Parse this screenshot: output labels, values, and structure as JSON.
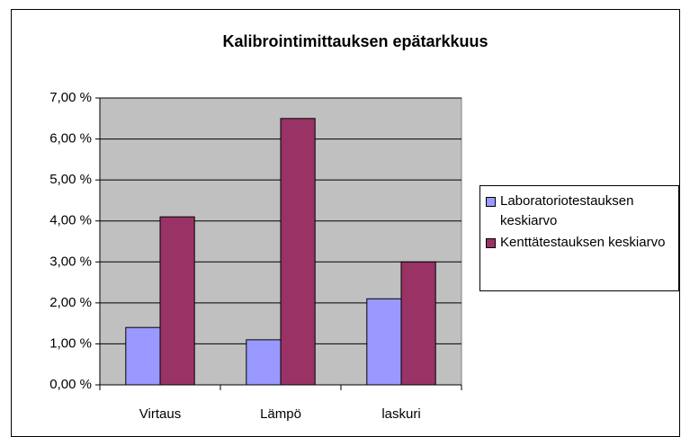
{
  "chart_data": {
    "type": "bar",
    "title": "Kalibrointimittauksen epätarkkuus",
    "categories": [
      "Virtaus",
      "Lämpö",
      "laskuri"
    ],
    "series": [
      {
        "name": "Laboratoriotestauksen keskiarvo",
        "color": "#9999ff",
        "values": [
          1.4,
          1.1,
          2.1
        ]
      },
      {
        "name": "Kenttätestauksen keskiarvo",
        "color": "#993366",
        "values": [
          4.1,
          6.5,
          3.0
        ]
      }
    ],
    "ylim": [
      0,
      7
    ],
    "yticks": [
      {
        "value": 0,
        "label": "0,00 %"
      },
      {
        "value": 1,
        "label": "1,00 %"
      },
      {
        "value": 2,
        "label": "2,00 %"
      },
      {
        "value": 3,
        "label": "3,00 %"
      },
      {
        "value": 4,
        "label": "4,00 %"
      },
      {
        "value": 5,
        "label": "5,00 %"
      },
      {
        "value": 6,
        "label": "6,00 %"
      },
      {
        "value": 7,
        "label": "7,00 %"
      }
    ],
    "grid": true,
    "legend": "right",
    "plot_background": "#c0c0c0"
  }
}
